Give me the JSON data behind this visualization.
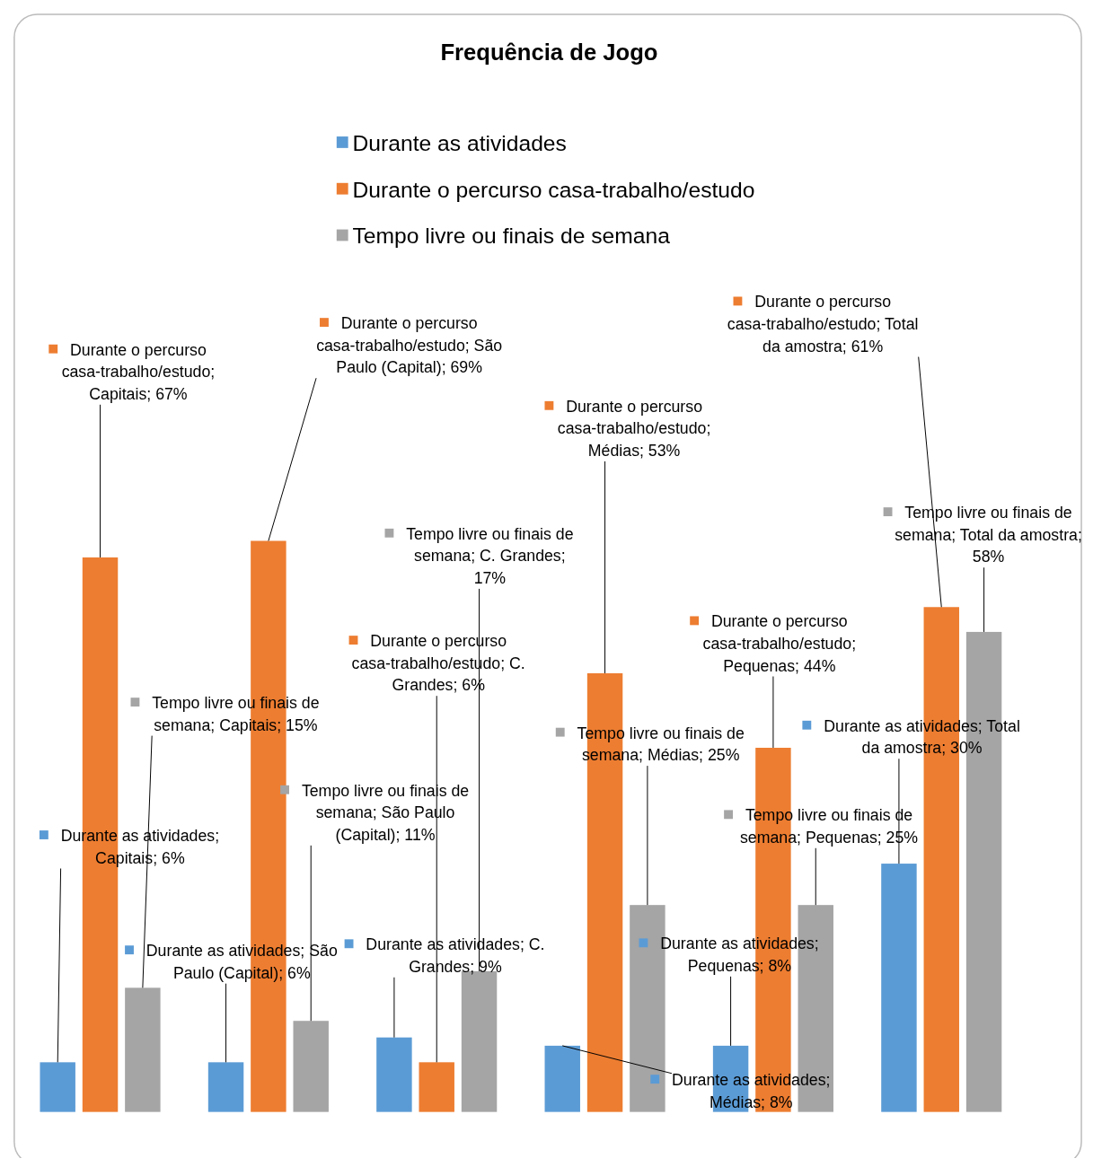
{
  "chart_data": {
    "type": "bar",
    "title": "Frequência de Jogo",
    "categories": [
      null,
      null,
      null,
      null,
      null,
      null
    ],
    "ylim": [
      0,
      70
    ],
    "legend": "top",
    "series": [
      {
        "name": "Durante as atividades",
        "color": "#5b9bd5",
        "values": [
          6,
          6,
          9,
          8,
          8,
          30
        ],
        "value_labels": [
          "Durante as atividades; Capitais; 6%",
          "Durante as atividades; São Paulo (Capital); 6%",
          "Durante as atividades; C. Grandes; 9%",
          "Durante as atividades; Médias; 8%",
          "Durante as atividades; Pequenas; 8%",
          "Durante as atividades; Total da amostra; 30%"
        ]
      },
      {
        "name": "Durante o percurso casa-trabalho/estudo",
        "color": "#ed7d31",
        "values": [
          67,
          69,
          6,
          53,
          44,
          61
        ],
        "value_labels": [
          "Durante o percurso casa-trabalho/estudo; Capitais; 67%",
          "Durante o percurso casa-trabalho/estudo; São Paulo (Capital); 69%",
          "Durante o percurso casa-trabalho/estudo; C. Grandes; 6%",
          "Durante o percurso casa-trabalho/estudo; Médias; 53%",
          "Durante o percurso casa-trabalho/estudo; Pequenas; 44%",
          "Durante o percurso casa-trabalho/estudo; Total da amostra; 61%"
        ]
      },
      {
        "name": "Tempo livre ou finais de semana",
        "color": "#a5a5a5",
        "values": [
          15,
          11,
          17,
          25,
          25,
          58
        ],
        "value_labels": [
          "Tempo livre ou finais de semana; Capitais; 15%",
          "Tempo livre ou finais de semana; São Paulo (Capital); 11%",
          "Tempo livre ou finais de semana; C. Grandes; 17%",
          "Tempo livre ou finais de semana; Médias; 25%",
          "Tempo livre ou finais de semana; Pequenas; 25%",
          "Tempo livre ou finais de semana; Total da amostra; 58%"
        ]
      }
    ]
  }
}
